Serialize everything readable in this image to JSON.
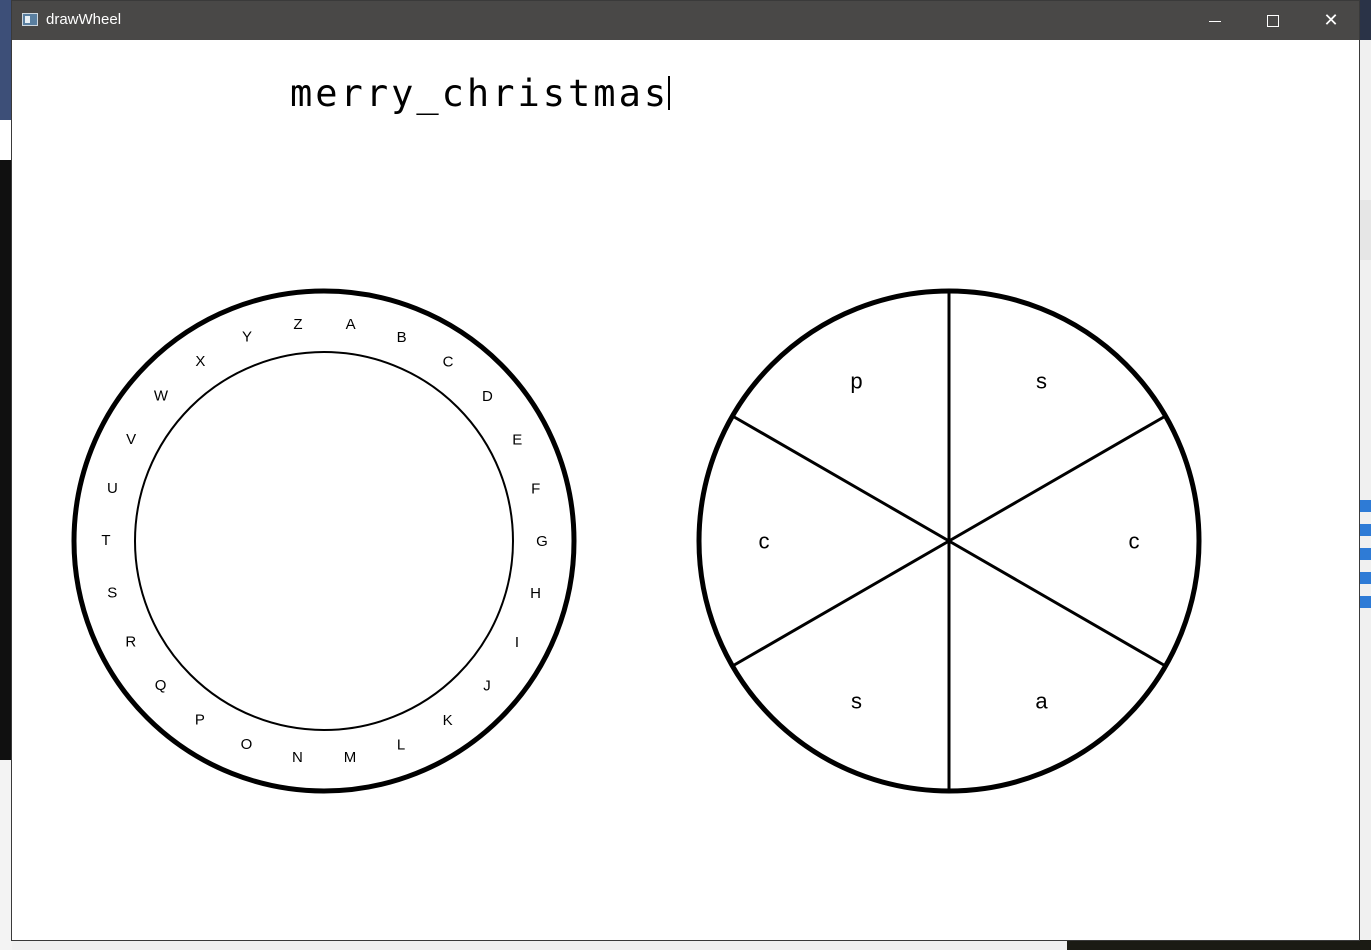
{
  "window": {
    "title": "drawWheel",
    "controls": {
      "minimize": "minimize",
      "maximize": "maximize",
      "close": "close"
    }
  },
  "input": {
    "text": "merry_christmas"
  },
  "alphabet_wheel": {
    "letters": [
      "A",
      "B",
      "C",
      "D",
      "E",
      "F",
      "G",
      "H",
      "I",
      "J",
      "K",
      "L",
      "M",
      "N",
      "O",
      "P",
      "Q",
      "R",
      "S",
      "T",
      "U",
      "V",
      "W",
      "X",
      "Y",
      "Z"
    ]
  },
  "segment_wheel": {
    "segments": [
      "s",
      "c",
      "a",
      "s",
      "c",
      "p"
    ]
  },
  "colors": {
    "titlebar": "#494847",
    "ink": "#000000",
    "canvas": "#ffffff"
  }
}
